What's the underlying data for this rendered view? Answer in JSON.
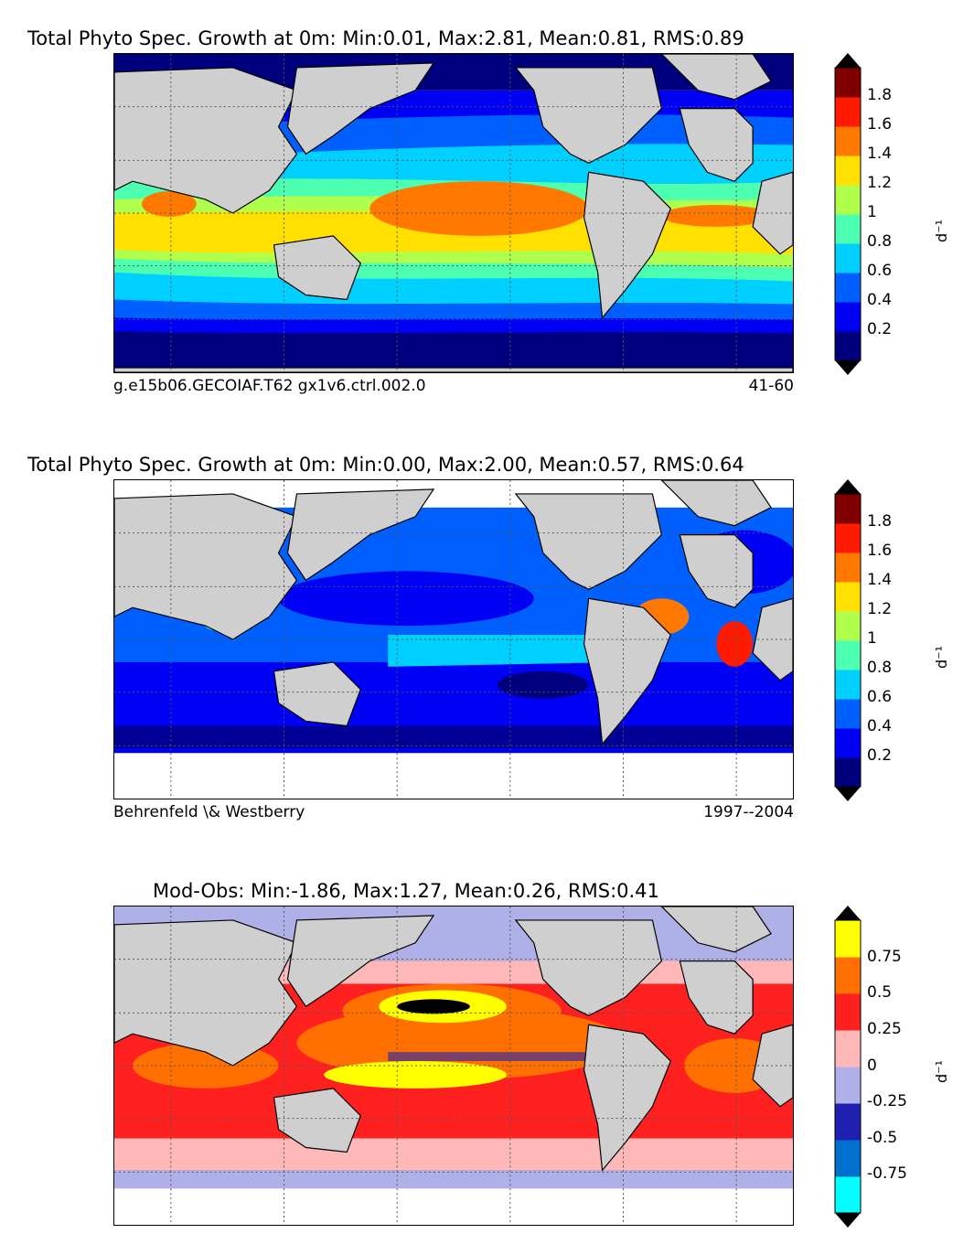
{
  "panels": [
    {
      "title": "Total Phyto Spec. Growth at 0m: Min:0.01, Max:2.81, Mean:0.81, RMS:0.89",
      "subtitle_left": "g.e15b06.GECOIAF.T62 gx1v6.ctrl.002.0",
      "subtitle_right": "41-60",
      "unit": "d⁻¹",
      "colorbar": {
        "ticks": [
          "0.2",
          "0.4",
          "0.6",
          "0.8",
          "1",
          "1.2",
          "1.4",
          "1.6",
          "1.8"
        ],
        "colors": [
          "#00007f",
          "#0000f5",
          "#0060ff",
          "#00d0ff",
          "#4dffb0",
          "#b0ff4d",
          "#ffe000",
          "#ff7800",
          "#ff1a00",
          "#800000"
        ],
        "extend": "both"
      }
    },
    {
      "title": "Total Phyto Spec. Growth at 0m: Min:0.00, Max:2.00, Mean:0.57, RMS:0.64",
      "subtitle_left": "Behrenfeld \\& Westberry",
      "subtitle_right": "1997--2004",
      "unit": "d⁻¹",
      "colorbar": {
        "ticks": [
          "0.2",
          "0.4",
          "0.6",
          "0.8",
          "1",
          "1.2",
          "1.4",
          "1.6",
          "1.8"
        ],
        "colors": [
          "#00007f",
          "#0000f5",
          "#0060ff",
          "#00d0ff",
          "#4dffb0",
          "#b0ff4d",
          "#ffe000",
          "#ff7800",
          "#ff1a00",
          "#800000"
        ],
        "extend": "both"
      }
    },
    {
      "title": "Mod-Obs: Min:-1.86, Max:1.27, Mean:0.26, RMS:0.41",
      "subtitle_left": "",
      "subtitle_right": "",
      "unit": "d⁻¹",
      "colorbar": {
        "ticks": [
          "-0.75",
          "-0.5",
          "-0.25",
          "0",
          "0.25",
          "0.5",
          "0.75"
        ],
        "colors": [
          "#00ffff",
          "#0070d0",
          "#2020b0",
          "#b0b0e8",
          "#ffb8b8",
          "#ff2020",
          "#ff7000",
          "#ffff00"
        ],
        "extend": "both"
      }
    }
  ],
  "colors": {
    "land": "#cfcfcf",
    "grid": "#555555"
  }
}
